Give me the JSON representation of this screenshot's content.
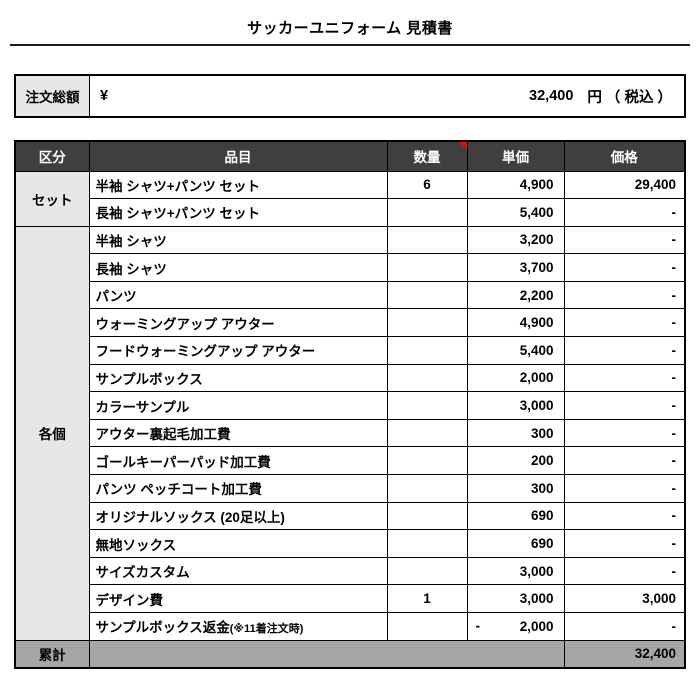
{
  "page": {
    "title": "サッカーユニフォーム 見積書"
  },
  "order_total": {
    "label": "注文総額",
    "currency": "¥",
    "amount": "32,400",
    "suffix": "円 （ 税込 ）"
  },
  "table": {
    "headers": {
      "category": "区分",
      "item": "品目",
      "qty": "数量",
      "unit_price": "単価",
      "price": "価格"
    },
    "icons": {
      "qty_header_marker": "red-comment-corner-triangle"
    },
    "groups": [
      {
        "label": "セット",
        "span": 2
      },
      {
        "label": "各個",
        "span": 15
      }
    ],
    "rows": [
      {
        "group": 0,
        "item": "半袖 シャツ+パンツ セット",
        "item_note": "",
        "qty": "6",
        "neg": "",
        "unit_price": "4,900",
        "price": "29,400"
      },
      {
        "item": "長袖 シャツ+パンツ セット",
        "item_note": "",
        "qty": "",
        "neg": "",
        "unit_price": "5,400",
        "price": "-"
      },
      {
        "group": 1,
        "item": "半袖 シャツ",
        "item_note": "",
        "qty": "",
        "neg": "",
        "unit_price": "3,200",
        "price": "-"
      },
      {
        "item": "長袖 シャツ",
        "item_note": "",
        "qty": "",
        "neg": "",
        "unit_price": "3,700",
        "price": "-"
      },
      {
        "item": "パンツ",
        "item_note": "",
        "qty": "",
        "neg": "",
        "unit_price": "2,200",
        "price": "-"
      },
      {
        "item": "ウォーミングアップ アウター",
        "item_note": "",
        "qty": "",
        "neg": "",
        "unit_price": "4,900",
        "price": "-"
      },
      {
        "item": "フードウォーミングアップ アウター",
        "item_note": "",
        "qty": "",
        "neg": "",
        "unit_price": "5,400",
        "price": "-"
      },
      {
        "item": "サンプルボックス",
        "item_note": "",
        "qty": "",
        "neg": "",
        "unit_price": "2,000",
        "price": "-"
      },
      {
        "item": "カラーサンプル",
        "item_note": "",
        "qty": "",
        "neg": "",
        "unit_price": "3,000",
        "price": "-"
      },
      {
        "item": "アウター裏起毛加工費",
        "item_note": "",
        "qty": "",
        "neg": "",
        "unit_price": "300",
        "price": "-"
      },
      {
        "item": "ゴールキーパーパッド加工費",
        "item_note": "",
        "qty": "",
        "neg": "",
        "unit_price": "200",
        "price": "-"
      },
      {
        "item": "パンツ ペッチコート加工費",
        "item_note": "",
        "qty": "",
        "neg": "",
        "unit_price": "300",
        "price": "-"
      },
      {
        "item": "オリジナルソックス (20足以上)",
        "item_note": "",
        "qty": "",
        "neg": "",
        "unit_price": "690",
        "price": "-"
      },
      {
        "item": "無地ソックス",
        "item_note": "",
        "qty": "",
        "neg": "",
        "unit_price": "690",
        "price": "-"
      },
      {
        "item": "サイズカスタム",
        "item_note": "",
        "qty": "",
        "neg": "",
        "unit_price": "3,000",
        "price": "-"
      },
      {
        "item": "デザイン費",
        "item_note": "",
        "qty": "1",
        "neg": "",
        "unit_price": "3,000",
        "price": "3,000"
      },
      {
        "item": "サンプルボックス返金",
        "item_note": "(※11着注文時)",
        "qty": "",
        "neg": "-",
        "unit_price": "2,000",
        "price": "-"
      }
    ],
    "total_row": {
      "label": "累計",
      "price": "32,400"
    }
  },
  "colors": {
    "header_bg": "#3f3f3f",
    "header_text": "#ffffff",
    "category_bg": "#e7e7e7",
    "total_row_bg": "#a6a6a6",
    "comment_marker": "#ff0000",
    "border": "#000000"
  }
}
